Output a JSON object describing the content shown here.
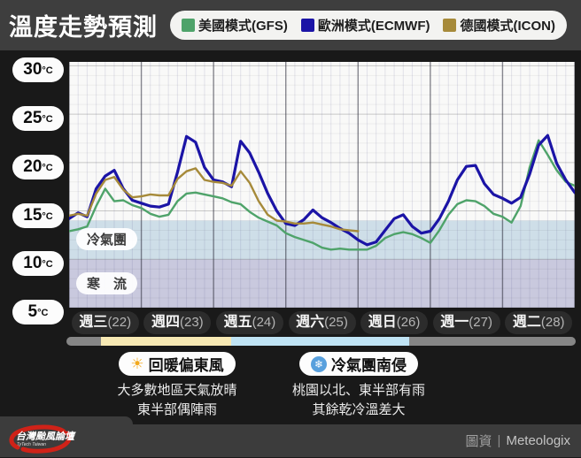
{
  "header": {
    "title": "溫度走勢預測",
    "legend": [
      {
        "label": "美國模式(GFS)",
        "color": "#4fa36a"
      },
      {
        "label": "歐洲模式(ECMWF)",
        "color": "#1b14a6"
      },
      {
        "label": "德國模式(ICON)",
        "color": "#a68a3a"
      }
    ]
  },
  "chart_data": {
    "type": "line",
    "title": "溫度走勢預測",
    "xlabel": "",
    "ylabel": "°C",
    "ylim": [
      5,
      30.4
    ],
    "yticks": [
      5,
      10,
      15,
      20,
      25,
      30
    ],
    "x_unit": "hours (3-hour steps over 7 days)",
    "x": [
      0,
      3,
      6,
      9,
      12,
      15,
      18,
      21,
      24,
      27,
      30,
      33,
      36,
      39,
      42,
      45,
      48,
      51,
      54,
      57,
      60,
      63,
      66,
      69,
      72,
      75,
      78,
      81,
      84,
      87,
      90,
      93,
      96,
      99,
      102,
      105,
      108,
      111,
      114,
      117,
      120,
      123,
      126,
      129,
      132,
      135,
      138,
      141,
      144,
      147,
      150,
      153,
      156,
      159,
      162,
      165,
      168
    ],
    "categories": [
      "週三(22)",
      "週四(23)",
      "週五(24)",
      "週六(25)",
      "週日(26)",
      "週一(27)",
      "週二(28)"
    ],
    "grid": true,
    "legend_position": "top",
    "series": [
      {
        "name": "美國模式(GFS)",
        "color": "#4fa36a",
        "width": 2.4,
        "values": [
          12.9,
          13.1,
          13.4,
          15.5,
          17.3,
          16.0,
          16.1,
          15.6,
          15.3,
          14.7,
          14.4,
          14.6,
          16.0,
          16.8,
          16.9,
          16.7,
          16.5,
          16.3,
          15.9,
          15.7,
          14.9,
          14.3,
          13.9,
          13.5,
          12.7,
          12.3,
          12.0,
          11.7,
          11.2,
          11.0,
          11.1,
          11.0,
          11.0,
          11.0,
          11.4,
          12.2,
          12.6,
          12.8,
          12.6,
          12.2,
          11.7,
          13.0,
          14.6,
          15.7,
          16.1,
          16.0,
          15.5,
          14.7,
          14.4,
          13.8,
          15.5,
          19.5,
          22.3,
          20.8,
          19.2,
          18.0,
          17.6
        ]
      },
      {
        "name": "歐洲模式(ECMWF)",
        "color": "#1b14a6",
        "width": 3.2,
        "values": [
          14.2,
          14.8,
          14.4,
          17.3,
          18.6,
          19.2,
          17.3,
          16.1,
          15.8,
          15.5,
          15.4,
          15.7,
          19.0,
          22.7,
          22.1,
          19.5,
          18.2,
          18.0,
          17.5,
          22.2,
          21.0,
          19.0,
          16.8,
          15.0,
          13.7,
          13.5,
          14.1,
          15.1,
          14.3,
          13.8,
          13.2,
          12.7,
          12.0,
          11.5,
          11.8,
          13.0,
          14.2,
          14.6,
          13.4,
          12.7,
          12.9,
          14.2,
          16.0,
          18.2,
          19.6,
          19.7,
          17.8,
          16.7,
          16.3,
          15.8,
          16.4,
          18.8,
          21.8,
          22.8,
          19.9,
          18.2,
          16.9
        ]
      },
      {
        "name": "德國模式(ICON)",
        "color": "#a68a3a",
        "width": 2.4,
        "values": [
          14.5,
          14.7,
          14.5,
          16.8,
          18.2,
          18.5,
          17.2,
          16.4,
          16.5,
          16.7,
          16.6,
          16.6,
          18.3,
          19.1,
          19.4,
          18.2,
          18.0,
          17.9,
          17.6,
          19.1,
          17.9,
          16.0,
          14.6,
          14.0,
          13.9,
          13.7,
          13.7,
          13.8,
          13.6,
          13.4,
          13.1,
          13.0,
          12.9,
          null,
          null,
          null,
          null,
          null,
          null,
          null,
          null,
          null,
          null,
          null,
          null,
          null,
          null,
          null,
          null,
          null,
          null,
          null,
          null,
          null,
          null,
          null,
          null
        ]
      }
    ],
    "bands": [
      {
        "label": "冷氣團",
        "from": 10,
        "to": 14,
        "color": "#cedee8"
      },
      {
        "label": "寒　流",
        "from": 5,
        "to": 10,
        "color": "#c9c9de"
      }
    ]
  },
  "y_axis": {
    "unit": "°C",
    "ticks": [
      "30",
      "25",
      "20",
      "15",
      "10",
      "5"
    ],
    "tick_values": [
      30,
      25,
      20,
      15,
      10,
      5
    ]
  },
  "x_axis": {
    "days": [
      {
        "name": "週三",
        "num": "(22)"
      },
      {
        "name": "週四",
        "num": "(23)"
      },
      {
        "name": "週五",
        "num": "(24)"
      },
      {
        "name": "週六",
        "num": "(25)"
      },
      {
        "name": "週日",
        "num": "(26)"
      },
      {
        "name": "週一",
        "num": "(27)"
      },
      {
        "name": "週二",
        "num": "(28)"
      }
    ]
  },
  "condition_bar": {
    "segments": [
      {
        "kind": "none",
        "color": "#868686",
        "from_h": 0,
        "to_h": 11.5
      },
      {
        "kind": "warm",
        "color": "#f7e9b4",
        "from_h": 11.5,
        "to_h": 54.4
      },
      {
        "kind": "cold",
        "color": "#bfe3f4",
        "from_h": 54.4,
        "to_h": 113
      },
      {
        "kind": "none",
        "color": "#868686",
        "from_h": 113,
        "to_h": 168
      }
    ]
  },
  "annotations": [
    {
      "icon": "sun-icon",
      "icon_glyph": "☀",
      "title": "回暖偏東風",
      "line1": "大多數地區天氣放晴",
      "line2": "東半部偶陣雨"
    },
    {
      "icon": "snowflake-icon",
      "icon_glyph": "❄",
      "title": "冷氣團南侵",
      "line1": "桃園以北、東半部有雨",
      "line2": "其餘乾冷溫差大"
    }
  ],
  "footer": {
    "logo_title": "台灣颱風論壇",
    "logo_subtitle": "TyTech Taiwan",
    "credit_label": "圖資",
    "credit_separator": "|",
    "credit_source": "Meteologix"
  }
}
